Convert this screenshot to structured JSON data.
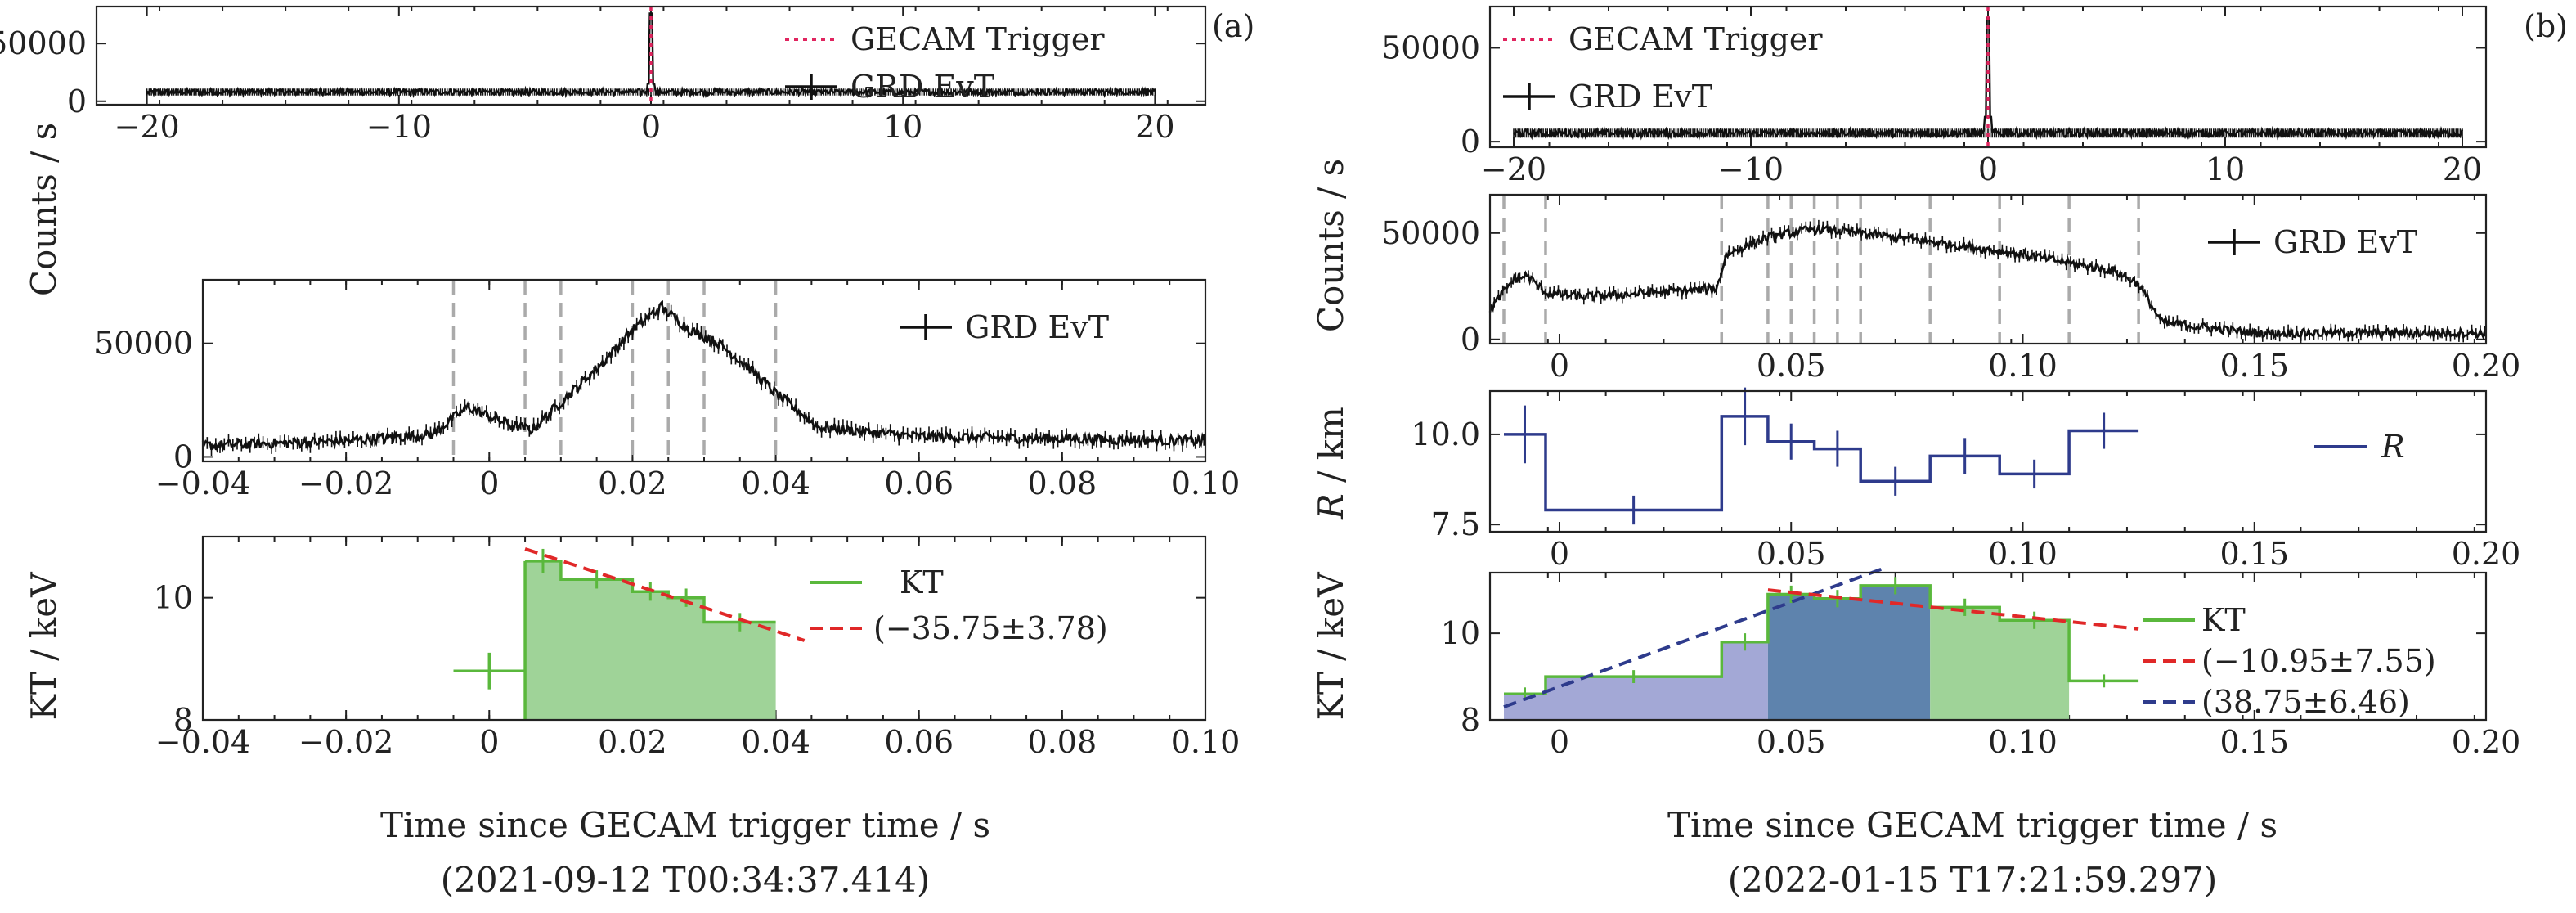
{
  "figure": {
    "panel_a_letter": "(a)",
    "panel_b_letter": "(b)",
    "ylabel_counts": "Counts / s",
    "ylabel_kt": "KT / keV",
    "ylabel_r": "R / km",
    "r_italic": "R",
    "xlabel": "Time since GECAM trigger time / s",
    "date_a": "(2021-09-12 T00:34:37.414)",
    "date_b": "(2022-01-15 T17:21:59.297)"
  },
  "colors": {
    "trigger": "#e0245e",
    "evt": "#111111",
    "kt_green": "#5ab83c",
    "kt_fill": "#9fd398",
    "red_fit": "#e02828",
    "navy": "#2e3b8c",
    "blue_fill_light": "#a3a8d6",
    "blue_fill_dark": "#5e83ad",
    "vline": "#aaaaaa"
  },
  "chart_data": [
    {
      "id": "a-top",
      "type": "line",
      "xlim": [
        -22,
        22
      ],
      "ylim": [
        -3000,
        82000
      ],
      "xticks": [
        -20,
        -10,
        0,
        10,
        20
      ],
      "xtick_labels": [
        "−20",
        "−10",
        "0",
        "10",
        "20"
      ],
      "yticks": [
        0,
        50000
      ],
      "ytick_labels": [
        "0",
        "50000"
      ],
      "baseline_rate": 8000,
      "noise": 2500,
      "x_range": [
        -20,
        20
      ],
      "peak": {
        "x": 0.0,
        "y": 76000
      },
      "trigger_x": 0,
      "legend": {
        "position": "top-right",
        "entries": [
          "GECAM Trigger",
          "GRD EvT"
        ]
      }
    },
    {
      "id": "a-mid",
      "type": "line",
      "xlim": [
        -0.04,
        0.1
      ],
      "ylim": [
        -2000,
        78000
      ],
      "xticks": [
        -0.04,
        -0.02,
        0,
        0.02,
        0.04,
        0.06,
        0.08,
        0.1
      ],
      "xtick_labels": [
        "−0.04",
        "−0.02",
        "0",
        "0.02",
        "0.04",
        "0.06",
        "0.08",
        "0.10"
      ],
      "yticks": [
        0,
        50000
      ],
      "ytick_labels": [
        "0",
        "50000"
      ],
      "profile": [
        [
          -0.04,
          5000
        ],
        [
          -0.02,
          7000
        ],
        [
          -0.008,
          10000
        ],
        [
          -0.003,
          22000
        ],
        [
          0.003,
          14000
        ],
        [
          0.006,
          12000
        ],
        [
          0.012,
          30000
        ],
        [
          0.016,
          42000
        ],
        [
          0.02,
          56000
        ],
        [
          0.024,
          66000
        ],
        [
          0.028,
          56000
        ],
        [
          0.032,
          50000
        ],
        [
          0.036,
          40000
        ],
        [
          0.04,
          28000
        ],
        [
          0.046,
          13000
        ],
        [
          0.06,
          9000
        ],
        [
          0.1,
          7000
        ]
      ],
      "noise": 2200,
      "vlines": [
        -0.005,
        0.005,
        0.01,
        0.02,
        0.025,
        0.03,
        0.04
      ],
      "legend": {
        "position": "top-right",
        "entries": [
          "GRD EvT"
        ]
      }
    },
    {
      "id": "a-bot",
      "type": "step",
      "xlim": [
        -0.04,
        0.1
      ],
      "ylim": [
        8,
        11
      ],
      "xticks": [
        -0.04,
        -0.02,
        0,
        0.02,
        0.04,
        0.06,
        0.08,
        0.1
      ],
      "xtick_labels": [
        "−0.04",
        "−0.02",
        "0",
        "0.02",
        "0.04",
        "0.06",
        "0.08",
        "0.10"
      ],
      "yticks": [
        8,
        10
      ],
      "ytick_labels": [
        "8",
        "10"
      ],
      "isolated_point": {
        "x": 0.0,
        "y": 8.8,
        "xerr": 0.005,
        "yerr": 0.3
      },
      "steps": [
        {
          "x0": 0.005,
          "x1": 0.01,
          "y": 10.6,
          "err": 0.2
        },
        {
          "x0": 0.01,
          "x1": 0.02,
          "y": 10.3,
          "err": 0.15
        },
        {
          "x0": 0.02,
          "x1": 0.025,
          "y": 10.1,
          "err": 0.15
        },
        {
          "x0": 0.025,
          "x1": 0.03,
          "y": 10.0,
          "err": 0.15
        },
        {
          "x0": 0.03,
          "x1": 0.04,
          "y": 9.6,
          "err": 0.15
        }
      ],
      "fit": {
        "x": [
          0.005,
          0.044
        ],
        "y": [
          10.8,
          9.3
        ]
      },
      "legend": {
        "position": "top-right",
        "entries": [
          "KT",
          "(−35.75±3.78)"
        ]
      }
    },
    {
      "id": "b-top",
      "type": "line",
      "xlim": [
        -21,
        21
      ],
      "ylim": [
        -3000,
        72000
      ],
      "xticks": [
        -20,
        -10,
        0,
        10,
        20
      ],
      "xtick_labels": [
        "−20",
        "−10",
        "0",
        "10",
        "20"
      ],
      "yticks": [
        0,
        50000
      ],
      "ytick_labels": [
        "0",
        "50000"
      ],
      "baseline_rate": 4500,
      "noise": 2000,
      "x_range": [
        -20,
        20
      ],
      "peak": {
        "x": 0.0,
        "y": 66000
      },
      "trigger_x": 0,
      "legend": {
        "position": "top-left",
        "entries": [
          "GECAM Trigger",
          "GRD EvT"
        ]
      }
    },
    {
      "id": "b-mid",
      "type": "line",
      "xlim": [
        -0.015,
        0.2
      ],
      "ylim": [
        -2000,
        68000
      ],
      "xticks": [
        0,
        0.05,
        0.1,
        0.15,
        0.2
      ],
      "xtick_labels": [
        "0",
        "0.05",
        "0.10",
        "0.15",
        "0.20"
      ],
      "yticks": [
        0,
        50000
      ],
      "ytick_labels": [
        "0",
        "50000"
      ],
      "profile": [
        [
          -0.015,
          14000
        ],
        [
          -0.01,
          28000
        ],
        [
          -0.007,
          30000
        ],
        [
          -0.003,
          22000
        ],
        [
          0.005,
          20000
        ],
        [
          0.02,
          22000
        ],
        [
          0.034,
          24000
        ],
        [
          0.036,
          40000
        ],
        [
          0.045,
          48000
        ],
        [
          0.055,
          52000
        ],
        [
          0.065,
          50000
        ],
        [
          0.08,
          46000
        ],
        [
          0.1,
          40000
        ],
        [
          0.12,
          32000
        ],
        [
          0.125,
          26000
        ],
        [
          0.13,
          8000
        ],
        [
          0.15,
          3000
        ],
        [
          0.2,
          3000
        ]
      ],
      "noise": 2000,
      "vlines": [
        -0.012,
        -0.003,
        0.035,
        0.045,
        0.05,
        0.055,
        0.06,
        0.065,
        0.08,
        0.095,
        0.11,
        0.125
      ],
      "legend": {
        "position": "top-right",
        "entries": [
          "GRD EvT"
        ]
      }
    },
    {
      "id": "b-r",
      "type": "step",
      "xlim": [
        -0.015,
        0.2
      ],
      "ylim": [
        7.3,
        11.2
      ],
      "xticks": [
        0,
        0.05,
        0.1,
        0.15,
        0.2
      ],
      "xtick_labels": [
        "0",
        "0.05",
        "0.10",
        "0.15",
        "0.20"
      ],
      "yticks": [
        7.5,
        10
      ],
      "ytick_labels": [
        "7.5",
        "10.0"
      ],
      "steps": [
        {
          "x0": -0.012,
          "x1": -0.003,
          "y": 10.0,
          "err": 0.8
        },
        {
          "x0": -0.003,
          "x1": 0.035,
          "y": 7.9,
          "err": 0.4
        },
        {
          "x0": 0.035,
          "x1": 0.045,
          "y": 10.5,
          "err": 0.8
        },
        {
          "x0": 0.045,
          "x1": 0.055,
          "y": 9.8,
          "err": 0.5
        },
        {
          "x0": 0.055,
          "x1": 0.065,
          "y": 9.6,
          "err": 0.5
        },
        {
          "x0": 0.065,
          "x1": 0.08,
          "y": 8.7,
          "err": 0.4
        },
        {
          "x0": 0.08,
          "x1": 0.095,
          "y": 9.4,
          "err": 0.5
        },
        {
          "x0": 0.095,
          "x1": 0.11,
          "y": 8.9,
          "err": 0.4
        },
        {
          "x0": 0.11,
          "x1": 0.125,
          "y": 10.1,
          "err": 0.5
        }
      ],
      "legend": {
        "position": "top-right",
        "entries": [
          "R"
        ]
      }
    },
    {
      "id": "b-bot",
      "type": "step",
      "xlim": [
        -0.015,
        0.2
      ],
      "ylim": [
        8,
        11.4
      ],
      "xticks": [
        0,
        0.05,
        0.1,
        0.15,
        0.2
      ],
      "xtick_labels": [
        "0",
        "0.05",
        "0.10",
        "0.15",
        "0.20"
      ],
      "yticks": [
        8,
        10
      ],
      "ytick_labels": [
        "8",
        "10"
      ],
      "steps": [
        {
          "x0": -0.012,
          "x1": -0.003,
          "y": 8.6,
          "err": 0.15
        },
        {
          "x0": -0.003,
          "x1": 0.035,
          "y": 9.0,
          "err": 0.15
        },
        {
          "x0": 0.035,
          "x1": 0.045,
          "y": 9.8,
          "err": 0.2
        },
        {
          "x0": 0.045,
          "x1": 0.055,
          "y": 10.9,
          "err": 0.2
        },
        {
          "x0": 0.055,
          "x1": 0.065,
          "y": 10.8,
          "err": 0.2
        },
        {
          "x0": 0.065,
          "x1": 0.08,
          "y": 11.1,
          "err": 0.2
        },
        {
          "x0": 0.08,
          "x1": 0.095,
          "y": 10.6,
          "err": 0.2
        },
        {
          "x0": 0.095,
          "x1": 0.11,
          "y": 10.3,
          "err": 0.2
        },
        {
          "x0": 0.11,
          "x1": 0.125,
          "y": 8.9,
          "err": 0.15
        }
      ],
      "fill_blue_light": [
        -0.012,
        0.045
      ],
      "fill_blue_dark": [
        0.045,
        0.08
      ],
      "fill_green": [
        0.08,
        0.11
      ],
      "fit_red": {
        "x": [
          0.045,
          0.125
        ],
        "y": [
          11.0,
          10.1
        ]
      },
      "fit_navy": {
        "x": [
          -0.012,
          0.07
        ],
        "y": [
          8.3,
          11.5
        ]
      },
      "legend": {
        "position": "right",
        "entries": [
          "KT",
          "(−10.95±7.55)",
          "(38.75±6.46)"
        ]
      }
    }
  ]
}
